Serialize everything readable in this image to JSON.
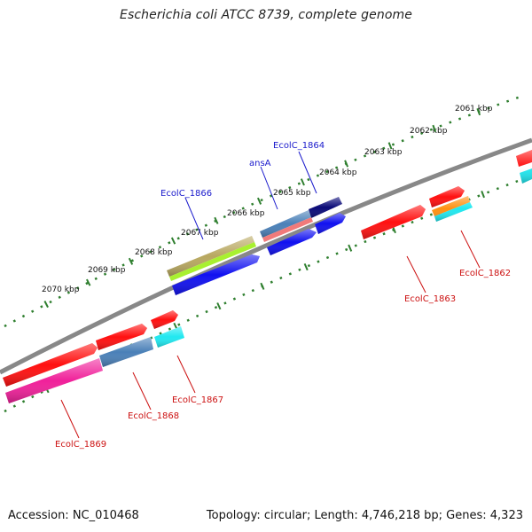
{
  "title": "Escherichia coli ATCC 8739, complete genome",
  "footer": {
    "accession": "Accession: NC_010468",
    "summary": "Topology: circular; Length: 4,746,218 bp; Genes: 4,323"
  },
  "kbp_labels": [
    "2061 kbp",
    "2062 kbp",
    "2063 kbp",
    "2064 kbp",
    "2065 kbp",
    "2066 kbp",
    "2067 kbp",
    "2068 kbp",
    "2069 kbp",
    "2070 kbp"
  ],
  "genes_top": [
    {
      "name": "EcolC_1864",
      "color": "#1a1acc"
    },
    {
      "name": "ansA",
      "color": "#1a1acc"
    },
    {
      "name": "EcolC_1866",
      "color": "#1a1acc"
    }
  ],
  "genes_bottom": [
    {
      "name": "EcolC_1862",
      "color": "#cc1111"
    },
    {
      "name": "EcolC_1863",
      "color": "#cc1111"
    },
    {
      "name": "EcolC_1867",
      "color": "#cc1111"
    },
    {
      "name": "EcolC_1868",
      "color": "#cc1111"
    },
    {
      "name": "EcolC_1869",
      "color": "#cc1111"
    }
  ],
  "colors": {
    "backbone": "#888888",
    "ruler_dots": "#2f7f2f",
    "feature_red": "#ff1010",
    "feature_blue": "#1010f0",
    "feature_navy": "#0a0a78",
    "feature_steelblue": "#4a80b8",
    "feature_salmon": "#f07a7a",
    "feature_olive": "#b8a860",
    "feature_lime": "#a8f030",
    "feature_cyan": "#20e8f0",
    "feature_orange": "#ff9010",
    "feature_pink": "#f0209a"
  }
}
